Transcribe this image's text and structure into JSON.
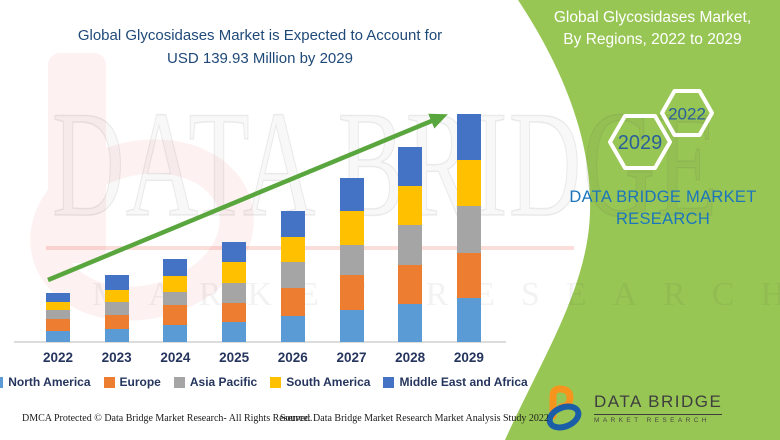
{
  "header": {
    "title_line1": "Global Glycosidases Market is Expected to Account for",
    "title_line2": "USD 139.93 Million by 2029"
  },
  "side_panel": {
    "title_line1": "Global Glycosidases Market,",
    "title_line2": "By Regions, 2022 to 2029",
    "hexagons": [
      {
        "label": "2029"
      },
      {
        "label": "2022"
      }
    ],
    "brand_line1": "DATA BRIDGE MARKET",
    "brand_line2": "RESEARCH",
    "logo_name": "DATA BRIDGE",
    "logo_subtitle": "MARKET RESEARCH"
  },
  "watermarks": {
    "brand": "DATA BRIDGE",
    "tagline": "MARKET RESEARCH"
  },
  "footer": {
    "left": "DMCA Protected © Data Bridge Market Research- All Rights Reserved.",
    "source": "Source: Data Bridge Market Research Market Analysis Study 2022"
  },
  "colors": {
    "panel_green": "#98C655",
    "arrow_green": "#5AA63E",
    "title_navy": "#1F4978",
    "axis_text_navy": "#25355E",
    "brand_blue": "#1B75BC",
    "hex_year_blue": "#2A6099",
    "logo_orange": "#F7941E",
    "logo_blue": "#1B5EA8"
  },
  "chart_data": {
    "type": "bar",
    "stacked": true,
    "title": "Global Glycosidases Market is Expected to Account for USD 139.93 Million by 2029",
    "unit": "USD Million",
    "xlabel": "",
    "ylabel": "",
    "y_axis_visible": false,
    "grid": false,
    "legend_position": "bottom",
    "annotation": "upward trend arrow from 2022 to 2029",
    "categories": [
      "2022",
      "2023",
      "2024",
      "2025",
      "2026",
      "2027",
      "2028",
      "2029"
    ],
    "totals": [
      30.1,
      41.0,
      51.1,
      61.3,
      80.5,
      100.4,
      119.6,
      139.93
    ],
    "series": [
      {
        "name": "North America",
        "color": "#5B9BD5",
        "values": [
          6.8,
          7.8,
          10.4,
          12.1,
          16.0,
          19.9,
          23.6,
          27.0
        ]
      },
      {
        "name": "Europe",
        "color": "#ED7D31",
        "values": [
          7.2,
          9.0,
          12.3,
          11.7,
          17.0,
          21.5,
          23.9,
          27.6
        ]
      },
      {
        "name": "Asia Pacific",
        "color": "#A5A5A5",
        "values": [
          5.5,
          7.8,
          7.8,
          12.3,
          16.4,
          18.0,
          24.5,
          28.7
        ]
      },
      {
        "name": "South America",
        "color": "#FFC000",
        "values": [
          5.1,
          7.2,
          10.3,
          12.9,
          15.0,
          20.9,
          23.5,
          28.6
        ]
      },
      {
        "name": "Middle East and Africa",
        "color": "#4472C4",
        "values": [
          5.5,
          9.2,
          10.3,
          12.3,
          16.1,
          20.1,
          24.1,
          28.0
        ]
      }
    ]
  }
}
